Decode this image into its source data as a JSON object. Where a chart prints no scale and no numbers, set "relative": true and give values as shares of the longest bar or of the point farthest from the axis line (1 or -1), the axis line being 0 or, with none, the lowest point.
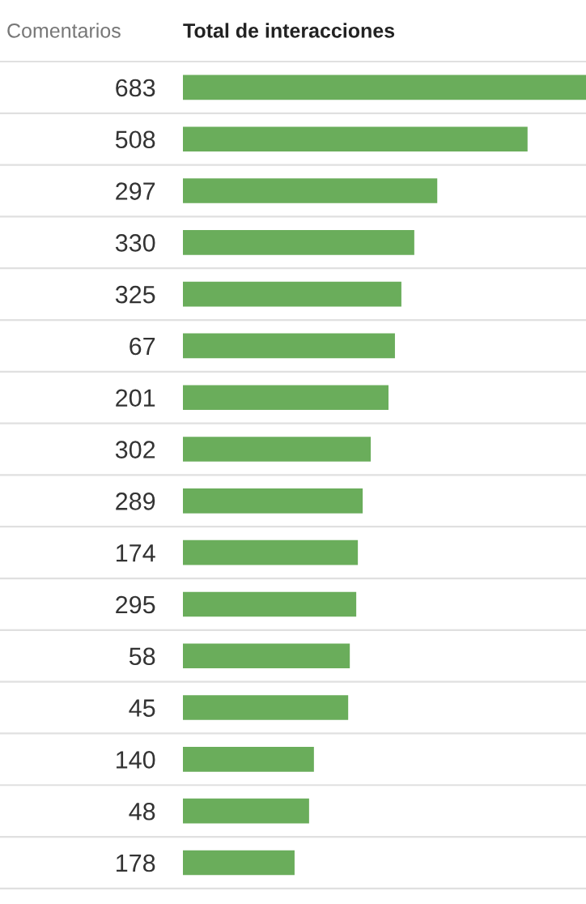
{
  "chart_data": {
    "type": "bar",
    "orientation": "horizontal",
    "relative": true,
    "ylabel": "Comentarios",
    "xlabel": "Total de interacciones",
    "categories": [
      "683",
      "508",
      "297",
      "330",
      "325",
      "67",
      "201",
      "302",
      "289",
      "174",
      "295",
      "58",
      "45",
      "140",
      "48",
      "178"
    ],
    "values": [
      1,
      0.855,
      0.631,
      0.574,
      0.542,
      0.526,
      0.51,
      0.466,
      0.446,
      0.434,
      0.43,
      0.414,
      0.41,
      0.325,
      0.313,
      0.277
    ],
    "color": "#6aad5b",
    "grid": false,
    "legend": false
  }
}
